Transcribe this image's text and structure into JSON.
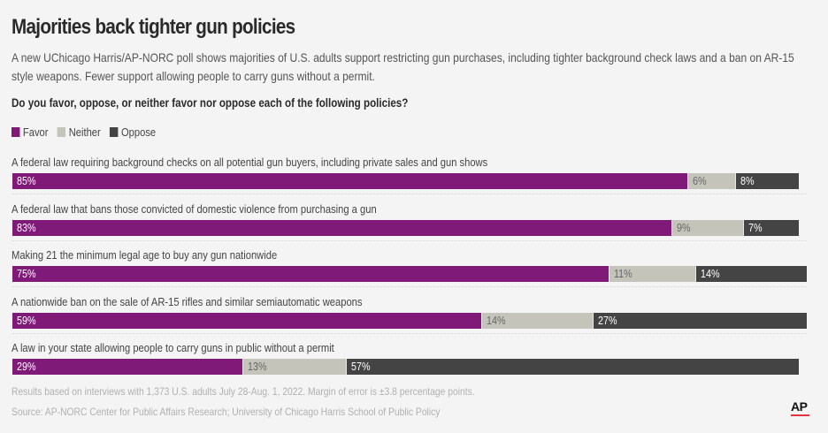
{
  "header": {
    "title": "Majorities back tighter gun policies",
    "subtitle": "A new UChicago Harris/AP-NORC poll shows majorities of U.S. adults support restricting gun purchases, including tighter background check laws and a ban on AR-15 style weapons. Fewer support allowing people to carry guns without a permit.",
    "question": "Do you favor, oppose, or neither favor nor oppose each of the following policies?"
  },
  "footer": {
    "note": "Results based on interviews with 1,373 U.S. adults July 28-Aug. 1, 2022. Margin of error is ±3.8 percentage points.",
    "source": "Source: AP-NORC Center for Public Affairs Research; University of Chicago Harris School of Public Policy",
    "logo": "AP"
  },
  "colors": {
    "favor": "#7f1a78",
    "neither": "#c4c4bb",
    "oppose": "#444444",
    "logo_underline": "#e0353f"
  },
  "chart_data": {
    "type": "bar",
    "orientation": "horizontal-stacked",
    "title": "Majorities back tighter gun policies",
    "legend": [
      "Favor",
      "Neither",
      "Oppose"
    ],
    "legend_position": "top-left",
    "xlim": [
      0,
      100
    ],
    "unit": "%",
    "categories": [
      "A federal law requiring background checks on all potential gun buyers, including private sales and gun shows",
      "A federal law that bans those convicted of domestic violence from purchasing a gun",
      "Making 21 the minimum legal age to buy any gun nationwide",
      "A nationwide ban on the sale of AR-15 rifles and similar semiautomatic weapons",
      "A law in your state allowing people to carry guns in public without a permit"
    ],
    "series": [
      {
        "name": "Favor",
        "values": [
          85,
          83,
          75,
          59,
          29
        ]
      },
      {
        "name": "Neither",
        "values": [
          6,
          9,
          11,
          14,
          13
        ]
      },
      {
        "name": "Oppose",
        "values": [
          8,
          7,
          14,
          27,
          57
        ]
      }
    ]
  }
}
